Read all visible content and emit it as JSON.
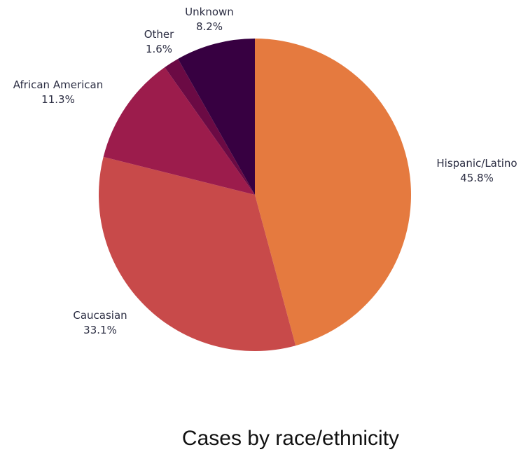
{
  "chart_data": {
    "type": "pie",
    "title": "Cases by race/ethnicity",
    "start_angle_deg": 0,
    "direction": "clockwise",
    "slices": [
      {
        "name": "Hispanic/Latino",
        "value": 45.8,
        "label": "45.8%",
        "color": "#e57a3f"
      },
      {
        "name": "Caucasian",
        "value": 33.1,
        "label": "33.1%",
        "color": "#c84a4a"
      },
      {
        "name": "African American",
        "value": 11.3,
        "label": "11.3%",
        "color": "#9c1c4c"
      },
      {
        "name": "Other",
        "value": 1.6,
        "label": "1.6%",
        "color": "#6b0a44"
      },
      {
        "name": "Unknown",
        "value": 8.2,
        "label": "8.2%",
        "color": "#370041"
      }
    ]
  }
}
